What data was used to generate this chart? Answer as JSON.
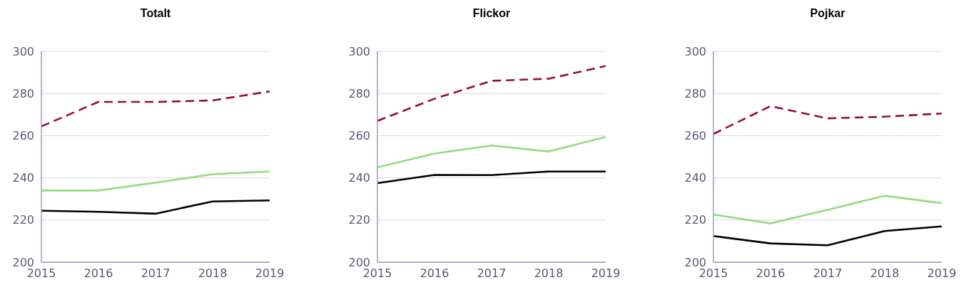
{
  "chart_data": [
    {
      "type": "line",
      "title": "Totalt",
      "x": [
        2015,
        2016,
        2017,
        2018,
        2019
      ],
      "xlim": [
        2015,
        2019
      ],
      "xticks": [
        2015,
        2016,
        2017,
        2018,
        2019
      ],
      "ylim": [
        200,
        300
      ],
      "yticks": [
        200,
        220,
        240,
        260,
        280,
        300
      ],
      "grid": "y",
      "legend": false,
      "marker": "none",
      "series": [
        {
          "color": "#990a3c",
          "line_style": "dashed",
          "values": [
            264.4,
            276,
            276,
            276.7,
            281
          ]
        },
        {
          "color": "#93dc7a",
          "line_style": "solid",
          "values": [
            234,
            234,
            237.7,
            241.7,
            243
          ]
        },
        {
          "color": "#000000",
          "line_style": "solid",
          "values": [
            224.4,
            223.9,
            223,
            228.8,
            229.3
          ]
        }
      ]
    },
    {
      "type": "line",
      "title": "Flickor",
      "x": [
        2015,
        2016,
        2017,
        2018,
        2019
      ],
      "xlim": [
        2015,
        2019
      ],
      "xticks": [
        2015,
        2016,
        2017,
        2018,
        2019
      ],
      "ylim": [
        200,
        300
      ],
      "yticks": [
        200,
        220,
        240,
        260,
        280,
        300
      ],
      "grid": "y",
      "legend": false,
      "marker": "none",
      "series": [
        {
          "color": "#990a3c",
          "line_style": "dashed",
          "values": [
            267,
            277.5,
            286,
            287,
            293
          ]
        },
        {
          "color": "#93dc7a",
          "line_style": "solid",
          "values": [
            245,
            251.5,
            255.3,
            252.5,
            259.4
          ]
        },
        {
          "color": "#000000",
          "line_style": "solid",
          "values": [
            237.5,
            241.4,
            241.3,
            243,
            243
          ]
        }
      ]
    },
    {
      "type": "line",
      "title": "Pojkar",
      "x": [
        2015,
        2016,
        2017,
        2018,
        2019
      ],
      "xlim": [
        2015,
        2019
      ],
      "xticks": [
        2015,
        2016,
        2017,
        2018,
        2019
      ],
      "ylim": [
        200,
        300
      ],
      "yticks": [
        200,
        220,
        240,
        260,
        280,
        300
      ],
      "grid": "y",
      "legend": false,
      "marker": "none",
      "series": [
        {
          "color": "#990a3c",
          "line_style": "dashed",
          "values": [
            260.8,
            274,
            268.2,
            269,
            270.5
          ]
        },
        {
          "color": "#93dc7a",
          "line_style": "solid",
          "values": [
            222.6,
            218.4,
            224.8,
            231.5,
            228
          ]
        },
        {
          "color": "#000000",
          "line_style": "solid",
          "values": [
            212.4,
            208.9,
            208,
            214.8,
            217
          ]
        }
      ]
    }
  ]
}
